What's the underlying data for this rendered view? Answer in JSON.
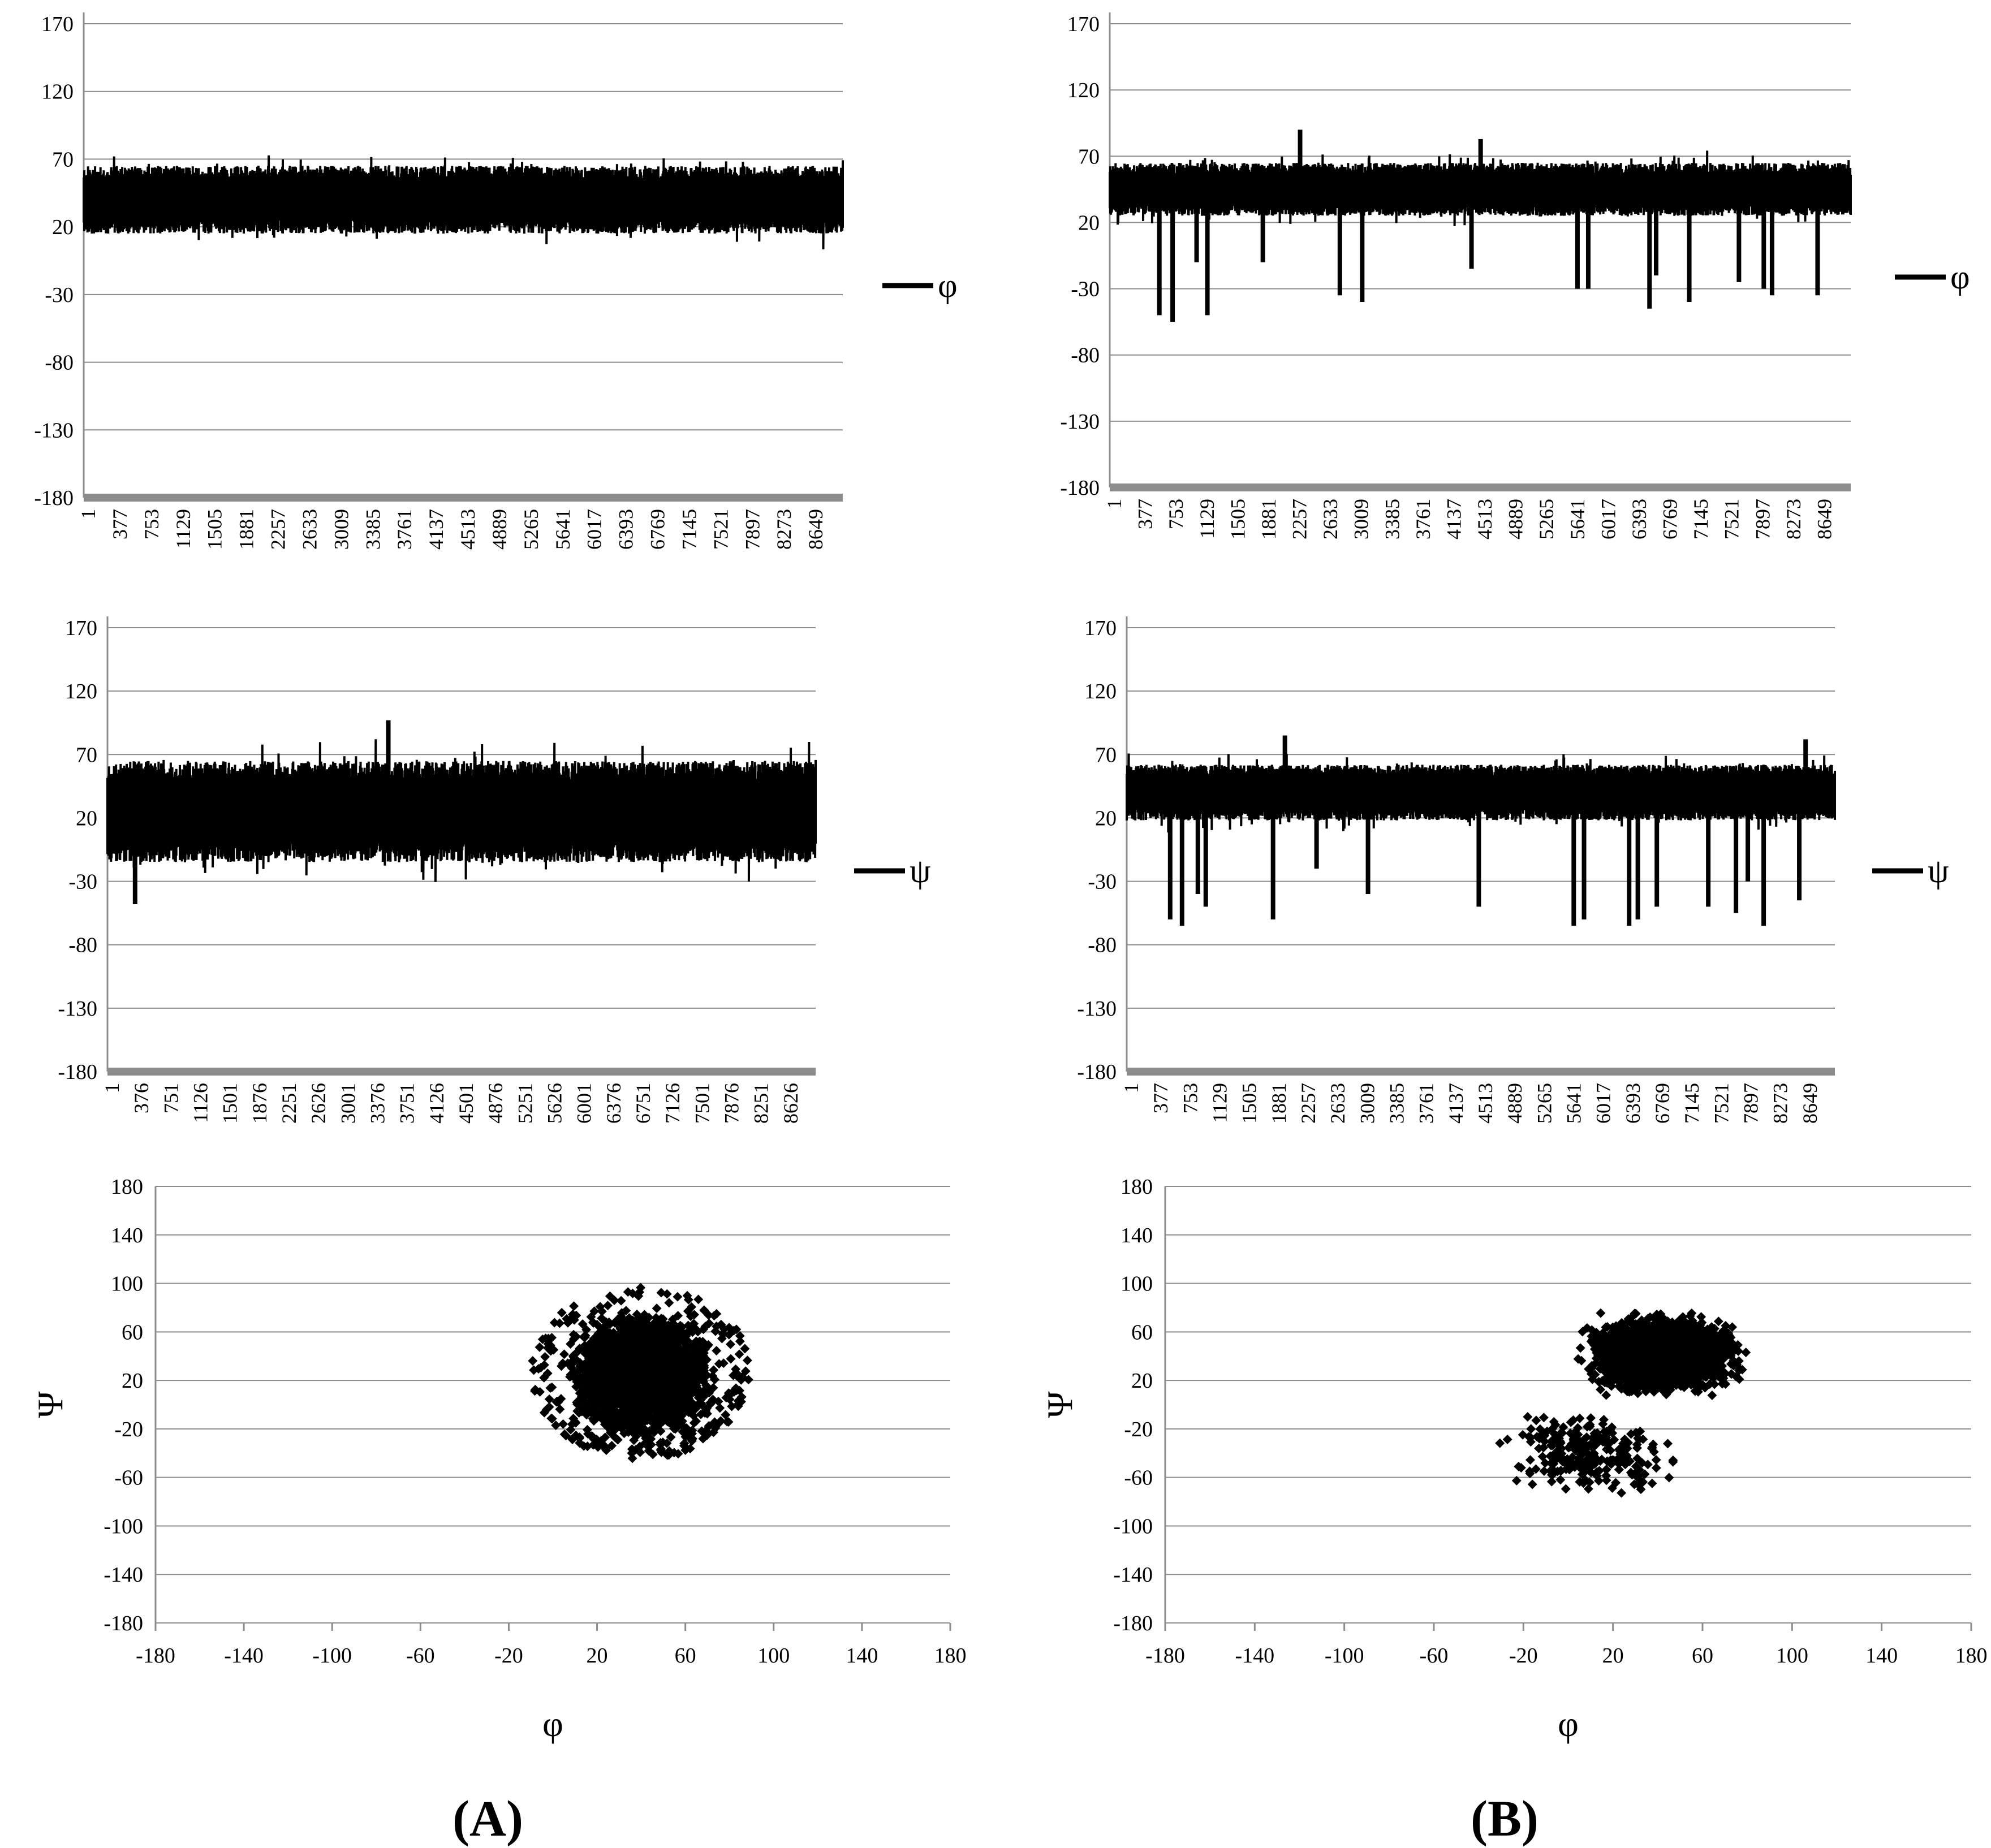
{
  "panel_labels": {
    "a": {
      "open": "(",
      "letter": "A",
      "close": ")"
    },
    "b": {
      "open": "(",
      "letter": "B",
      "close": ")"
    }
  },
  "colors": {
    "series": "#000000",
    "grid": "#8c8c8c",
    "axis_band": "#8c8c8c"
  },
  "chart_data": [
    {
      "id": "A-phi",
      "type": "line",
      "legend": "φ",
      "legend_position": "right",
      "ylim": [
        -180,
        170
      ],
      "yticks": [
        170,
        120,
        70,
        20,
        -30,
        -80,
        -130,
        -180
      ],
      "xlim": [
        1,
        8950
      ],
      "xtick_labels": [
        "1",
        "377",
        "753",
        "1129",
        "1505",
        "1881",
        "2257",
        "2633",
        "3009",
        "3385",
        "3761",
        "4137",
        "4513",
        "4889",
        "5265",
        "5641",
        "6017",
        "6393",
        "6769",
        "7145",
        "7521",
        "7897",
        "8273",
        "8649"
      ],
      "grid": true,
      "series": [
        {
          "band": {
            "center": 40,
            "amplitude": 25,
            "max": 86,
            "min": -9
          },
          "spikes": []
        }
      ]
    },
    {
      "id": "B-phi",
      "type": "line",
      "legend": "φ",
      "legend_position": "right",
      "ylim": [
        -180,
        170
      ],
      "yticks": [
        170,
        120,
        70,
        20,
        -30,
        -80,
        -130,
        -180
      ],
      "xlim": [
        1,
        8950
      ],
      "xtick_labels": [
        "1",
        "377",
        "753",
        "1129",
        "1505",
        "1881",
        "2257",
        "2633",
        "3009",
        "3385",
        "3761",
        "4137",
        "4513",
        "4889",
        "5265",
        "5641",
        "6017",
        "6393",
        "6769",
        "7145",
        "7521",
        "7897",
        "8273",
        "8649"
      ],
      "grid": true,
      "series": [
        {
          "band": {
            "center": 45,
            "amplitude": 20,
            "max": 90,
            "min": 5
          },
          "spikes": [
            [
              600,
              -50
            ],
            [
              760,
              -55
            ],
            [
              1050,
              -10
            ],
            [
              1180,
              -50
            ],
            [
              1850,
              -10
            ],
            [
              2300,
              90
            ],
            [
              2780,
              -35
            ],
            [
              3050,
              -40
            ],
            [
              4370,
              -15
            ],
            [
              4480,
              83
            ],
            [
              5650,
              -30
            ],
            [
              5780,
              -30
            ],
            [
              6520,
              -45
            ],
            [
              6600,
              -20
            ],
            [
              7000,
              -40
            ],
            [
              7600,
              -25
            ],
            [
              7900,
              -30
            ],
            [
              8000,
              -35
            ],
            [
              8550,
              -35
            ]
          ]
        }
      ]
    },
    {
      "id": "A-psi",
      "type": "line",
      "legend": "ψ",
      "legend_position": "right",
      "ylim": [
        -180,
        170
      ],
      "yticks": [
        170,
        120,
        70,
        20,
        -30,
        -80,
        -130,
        -180
      ],
      "xlim": [
        1,
        8950
      ],
      "xtick_labels": [
        "1",
        "376",
        "751",
        "1126",
        "1501",
        "1876",
        "2251",
        "2626",
        "3001",
        "3376",
        "3751",
        "4126",
        "4501",
        "4876",
        "5251",
        "5626",
        "6001",
        "6376",
        "6751",
        "7126",
        "7501",
        "7876",
        "8251",
        "8626"
      ],
      "grid": true,
      "series": [
        {
          "band": {
            "center": 25,
            "amplitude": 40,
            "max": 97,
            "min": -48
          },
          "spikes": [
            [
              350,
              -48
            ],
            [
              3550,
              97
            ]
          ]
        }
      ]
    },
    {
      "id": "B-psi",
      "type": "line",
      "legend": "ψ",
      "legend_position": "right",
      "ylim": [
        -180,
        170
      ],
      "yticks": [
        170,
        120,
        70,
        20,
        -30,
        -80,
        -130,
        -180
      ],
      "xlim": [
        1,
        8950
      ],
      "xtick_labels": [
        "1",
        "377",
        "753",
        "1129",
        "1505",
        "1881",
        "2257",
        "2633",
        "3009",
        "3385",
        "3761",
        "4137",
        "4513",
        "4889",
        "5265",
        "5641",
        "6017",
        "6393",
        "6769",
        "7145",
        "7521",
        "7897",
        "8273",
        "8649"
      ],
      "grid": true,
      "series": [
        {
          "band": {
            "center": 40,
            "amplitude": 22,
            "max": 85,
            "min": 8
          },
          "spikes": [
            [
              550,
              -60
            ],
            [
              700,
              -65
            ],
            [
              900,
              -40
            ],
            [
              1000,
              -50
            ],
            [
              1850,
              -60
            ],
            [
              2000,
              85
            ],
            [
              2400,
              -20
            ],
            [
              3050,
              -40
            ],
            [
              4450,
              -50
            ],
            [
              5650,
              -65
            ],
            [
              5780,
              -60
            ],
            [
              6350,
              -65
            ],
            [
              6460,
              -60
            ],
            [
              6700,
              -50
            ],
            [
              7350,
              -50
            ],
            [
              7700,
              -55
            ],
            [
              7850,
              -30
            ],
            [
              8050,
              -65
            ],
            [
              8500,
              -45
            ],
            [
              8580,
              82
            ]
          ]
        }
      ]
    },
    {
      "id": "A-scatter",
      "type": "scatter",
      "xlabel": "φ",
      "ylabel": "Ψ",
      "xlim": [
        -180,
        180
      ],
      "ylim": [
        -180,
        180
      ],
      "xticks": [
        -180,
        -140,
        -100,
        -60,
        -20,
        20,
        60,
        100,
        140,
        180
      ],
      "yticks": [
        180,
        140,
        100,
        60,
        20,
        -20,
        -60,
        -100,
        -140,
        -180
      ],
      "grid": true,
      "clusters": [
        {
          "x_range": [
            0,
            80
          ],
          "y_range": [
            -40,
            90
          ],
          "density": "very high"
        },
        {
          "x_range": [
            -10,
            90
          ],
          "y_range": [
            -45,
            98
          ],
          "density": "sparse fringe"
        }
      ]
    },
    {
      "id": "B-scatter",
      "type": "scatter",
      "xlabel": "φ",
      "ylabel": "Ψ",
      "xlim": [
        -180,
        180
      ],
      "ylim": [
        -180,
        180
      ],
      "xticks": [
        -180,
        -140,
        -100,
        -60,
        -20,
        20,
        60,
        100,
        140,
        180
      ],
      "yticks": [
        180,
        140,
        100,
        60,
        20,
        -20,
        -60,
        -100,
        -140,
        -180
      ],
      "grid": true,
      "clusters": [
        {
          "center": [
            42,
            42
          ],
          "x_range": [
            10,
            90
          ],
          "y_range": [
            10,
            85
          ],
          "density": "very high"
        },
        {
          "center": [
            10,
            -40
          ],
          "x_range": [
            -60,
            30
          ],
          "y_range": [
            -68,
            10
          ],
          "density": "medium"
        }
      ]
    }
  ]
}
